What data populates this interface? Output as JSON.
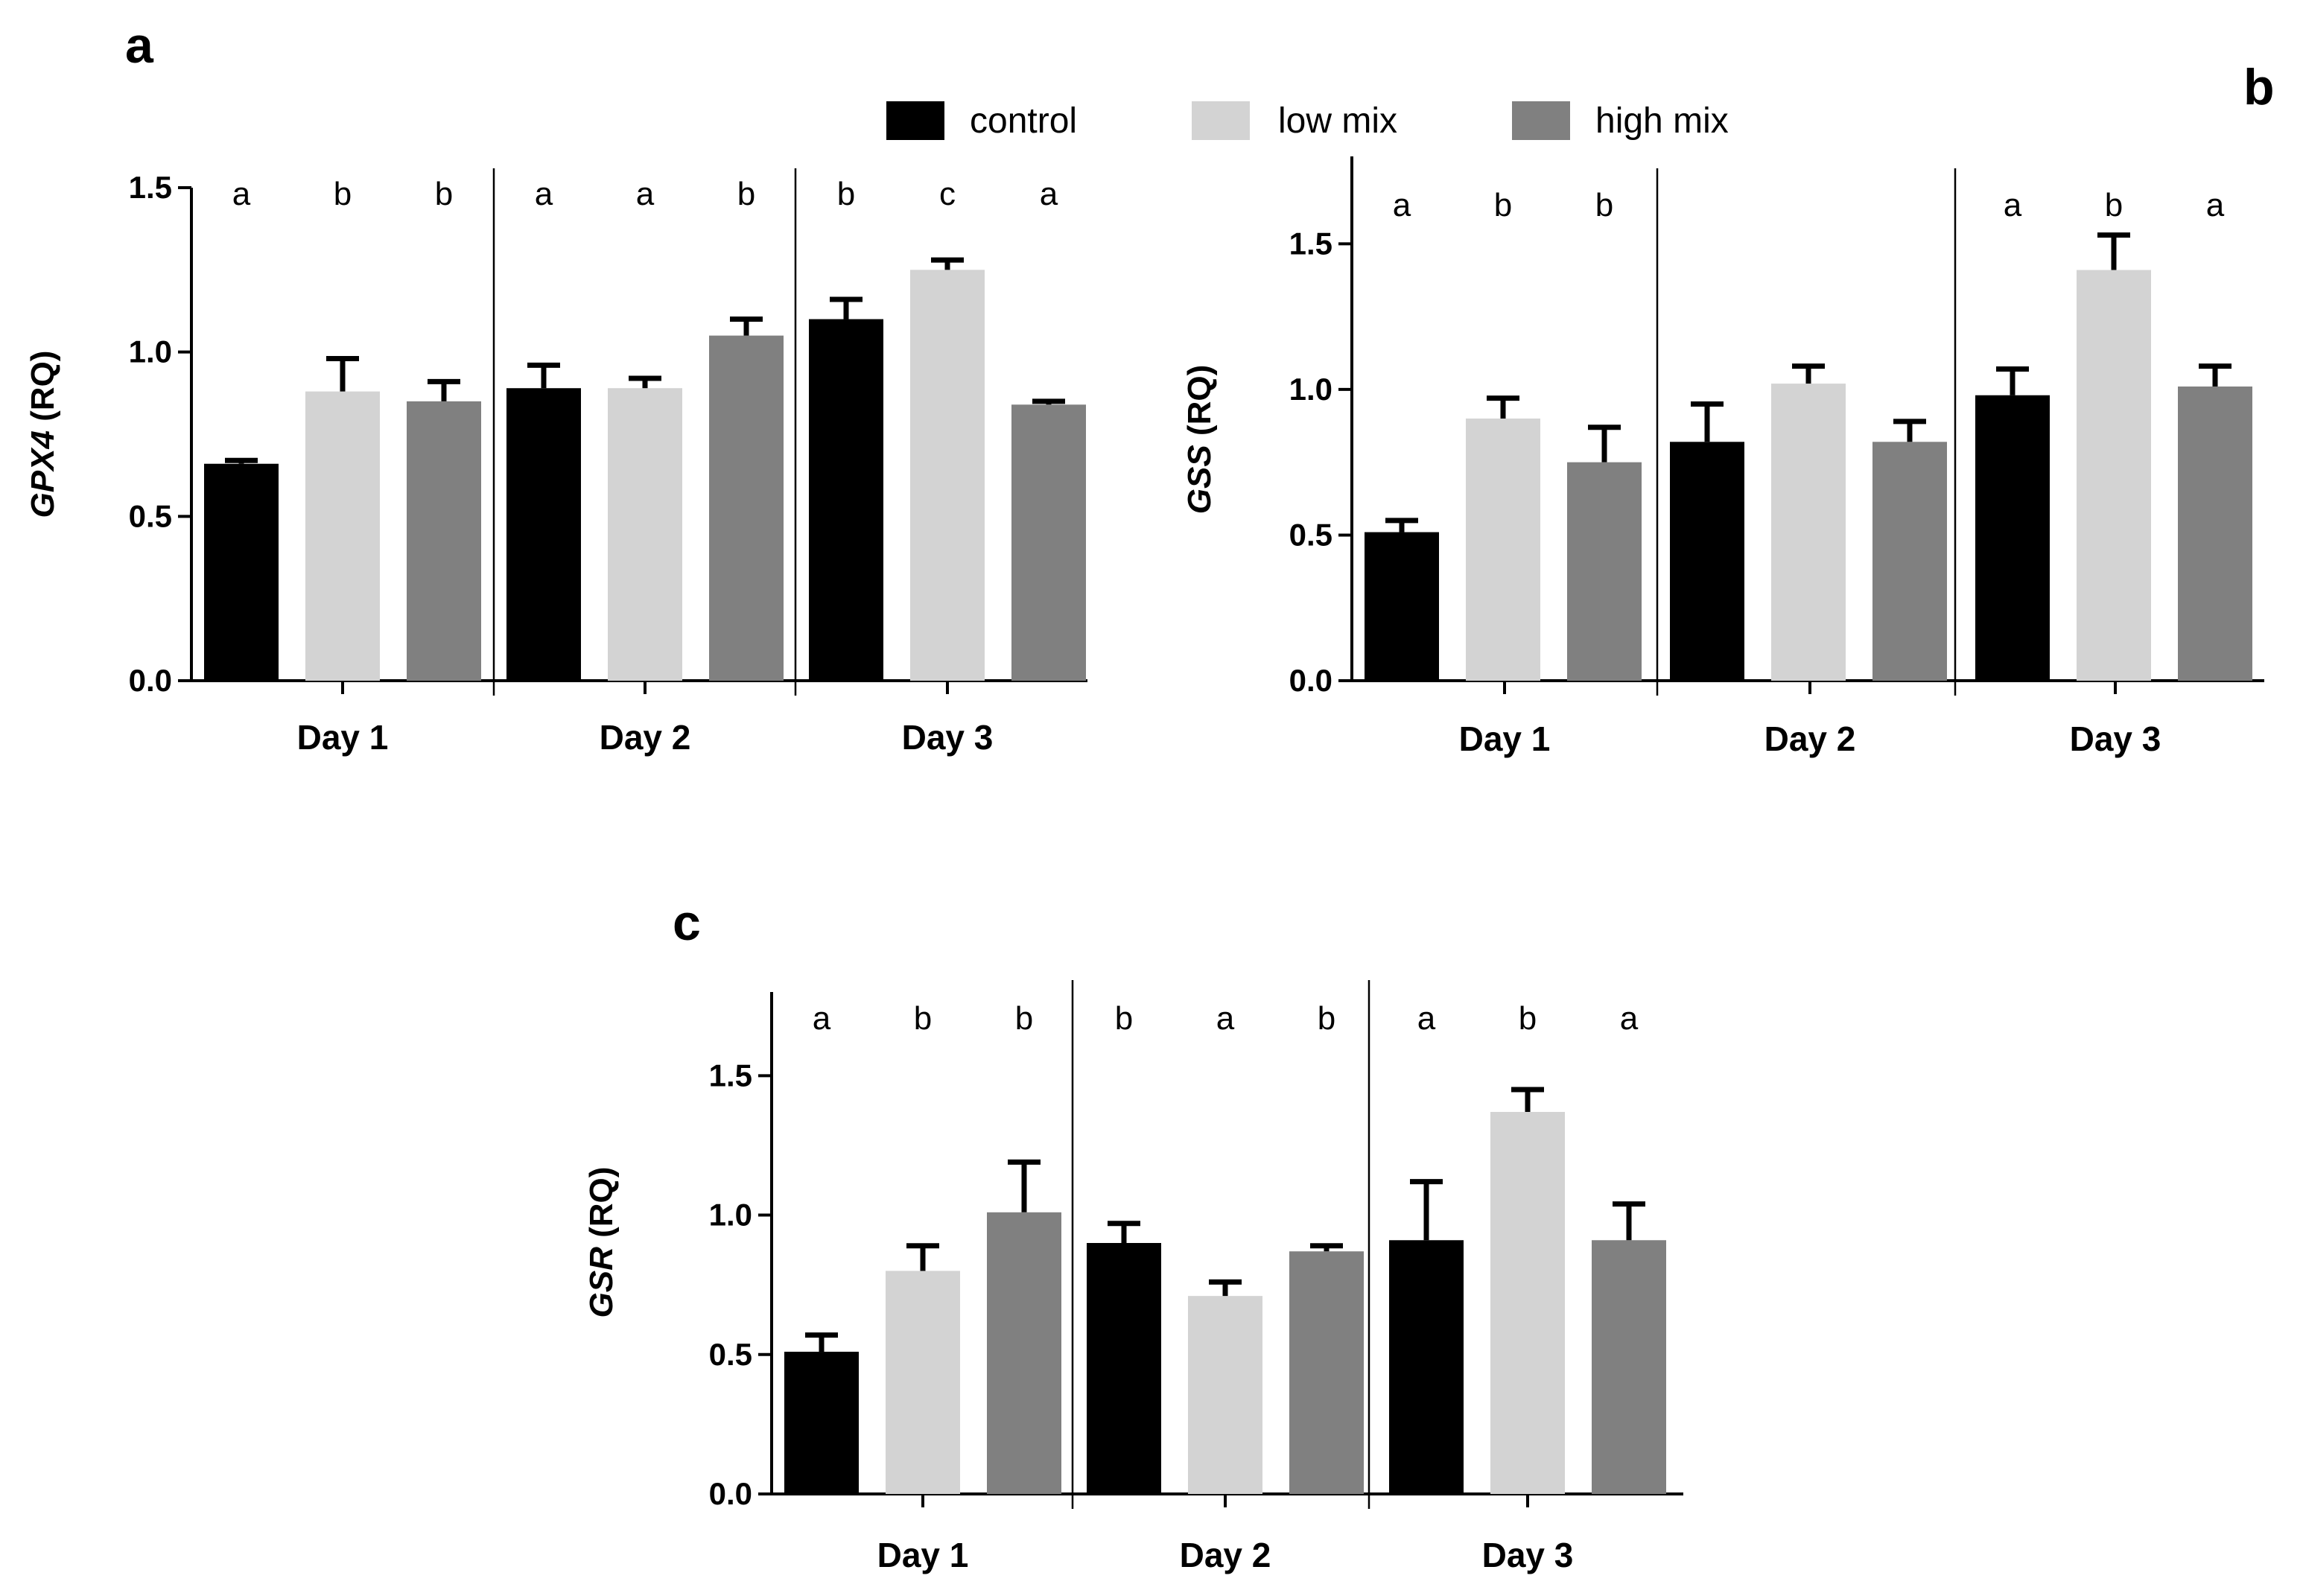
{
  "legend": [
    {
      "label": "control",
      "color": "#000000"
    },
    {
      "label": "low mix",
      "color": "#d3d3d3"
    },
    {
      "label": "high mix",
      "color": "#808080"
    }
  ],
  "chart_data": [
    {
      "type": "bar",
      "panel": "a",
      "gene": "GPX4",
      "ylabel_suffix": " (RQ)",
      "ylim": [
        0,
        1.5
      ],
      "yticks": [
        0,
        0.5,
        1.0,
        1.5
      ],
      "ytick_labels": [
        "0.0",
        "0.5",
        "1.0",
        "1.5"
      ],
      "categories": [
        "Day 1",
        "Day 2",
        "Day 3"
      ],
      "series": [
        {
          "name": "control",
          "values": [
            0.66,
            0.89,
            1.1
          ],
          "errors": [
            0.01,
            0.07,
            0.06
          ]
        },
        {
          "name": "low mix",
          "values": [
            0.88,
            0.89,
            1.25
          ],
          "errors": [
            0.1,
            0.03,
            0.03
          ]
        },
        {
          "name": "high mix",
          "values": [
            0.85,
            1.05,
            0.84
          ],
          "errors": [
            0.06,
            0.05,
            0.01
          ]
        }
      ],
      "significance": [
        [
          "a",
          "b",
          "b"
        ],
        [
          "a",
          "a",
          "b"
        ],
        [
          "b",
          "c",
          "a"
        ]
      ]
    },
    {
      "type": "bar",
      "panel": "b",
      "gene": "GSS",
      "ylabel_suffix": " (RQ)",
      "ylim": [
        0,
        1.8
      ],
      "yticks": [
        0,
        0.5,
        1.0,
        1.5
      ],
      "ytick_labels": [
        "0.0",
        "0.5",
        "1.0",
        "1.5"
      ],
      "categories": [
        "Day 1",
        "Day 2",
        "Day 3"
      ],
      "series": [
        {
          "name": "control",
          "values": [
            0.51,
            0.82,
            0.98
          ],
          "errors": [
            0.04,
            0.13,
            0.09
          ]
        },
        {
          "name": "low mix",
          "values": [
            0.9,
            1.02,
            1.41
          ],
          "errors": [
            0.07,
            0.06,
            0.12
          ]
        },
        {
          "name": "high mix",
          "values": [
            0.75,
            0.82,
            1.01
          ],
          "errors": [
            0.12,
            0.07,
            0.07
          ]
        }
      ],
      "significance": [
        [
          "a",
          "b",
          "b"
        ],
        [
          "",
          "",
          ""
        ],
        [
          "a",
          "b",
          "a"
        ]
      ]
    },
    {
      "type": "bar",
      "panel": "c",
      "gene": "GSR",
      "ylabel_suffix": " (RQ)",
      "ylim": [
        0,
        1.8
      ],
      "yticks": [
        0,
        0.5,
        1.0,
        1.5
      ],
      "ytick_labels": [
        "0.0",
        "0.5",
        "1.0",
        "1.5"
      ],
      "categories": [
        "Day 1",
        "Day 2",
        "Day 3"
      ],
      "series": [
        {
          "name": "control",
          "values": [
            0.51,
            0.9,
            0.91
          ],
          "errors": [
            0.06,
            0.07,
            0.21
          ]
        },
        {
          "name": "low mix",
          "values": [
            0.8,
            0.71,
            1.37
          ],
          "errors": [
            0.09,
            0.05,
            0.08
          ]
        },
        {
          "name": "high mix",
          "values": [
            1.01,
            0.87,
            0.91
          ],
          "errors": [
            0.18,
            0.02,
            0.13
          ]
        }
      ],
      "significance": [
        [
          "a",
          "b",
          "b"
        ],
        [
          "b",
          "a",
          "b"
        ],
        [
          "a",
          "b",
          "a"
        ]
      ]
    }
  ]
}
